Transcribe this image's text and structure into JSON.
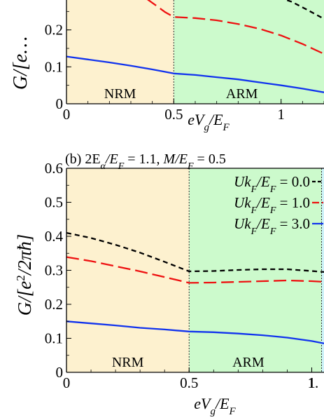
{
  "colors": {
    "nrm_region": "#fdf1cf",
    "arm_region": "#ccfacc",
    "edge_region": "#cdf2f8",
    "black_series": "#000000",
    "red_series": "#ee1111",
    "blue_series": "#1133ee"
  },
  "chart_data": [
    {
      "type": "line",
      "panel": "top",
      "title": "",
      "xlabel": "eV_g/E_F",
      "ylabel": "G/[e…",
      "xlim": [
        0,
        1.2
      ],
      "ylim": [
        0,
        0.3
      ],
      "yticks": [
        "0",
        "0.1",
        "0.2"
      ],
      "xticks": [
        "0",
        "0.5",
        "1"
      ],
      "regions": [
        {
          "label": "NRM",
          "x_from": 0,
          "x_to": 0.5
        },
        {
          "label": "ARM",
          "x_from": 0.5,
          "x_to": 1.2
        }
      ],
      "series": [
        {
          "color": "black",
          "style": "dashed",
          "x": [
            0.88,
            0.95,
            1.05,
            1.12,
            1.2
          ],
          "y": [
            0.31,
            0.296,
            0.276,
            0.255,
            0.23
          ]
        },
        {
          "color": "red",
          "style": "long-dashed",
          "x": [
            0.3,
            0.36,
            0.42,
            0.46,
            0.5,
            0.6,
            0.7,
            0.8,
            0.9,
            1.0,
            1.1,
            1.2
          ],
          "y": [
            0.31,
            0.29,
            0.265,
            0.248,
            0.235,
            0.232,
            0.226,
            0.216,
            0.203,
            0.185,
            0.162,
            0.135
          ]
        },
        {
          "color": "blue",
          "style": "solid",
          "x": [
            0,
            0.1,
            0.2,
            0.3,
            0.4,
            0.5,
            0.6,
            0.7,
            0.8,
            0.9,
            1.0,
            1.1,
            1.2
          ],
          "y": [
            0.128,
            0.12,
            0.112,
            0.103,
            0.093,
            0.082,
            0.078,
            0.072,
            0.066,
            0.058,
            0.05,
            0.041,
            0.031
          ]
        }
      ]
    },
    {
      "type": "line",
      "panel": "bottom",
      "title_parts": {
        "prefix": "(b)  2E",
        "sub1": "α",
        "mid1": "/E",
        "sub2": "F",
        "mid2": " = 1.1, ",
        "m": "M",
        "mid3": "/E",
        "sub3": "F",
        "suffix": " = 0.5"
      },
      "xlabel": "eV_g/E_F",
      "ylabel": "G/[e²/2πħ]",
      "xlim": [
        0,
        1.05
      ],
      "ylim": [
        0,
        0.6
      ],
      "yticks": [
        "0",
        "0.1",
        "0.2",
        "0.3",
        "0.4",
        "0.5",
        "0.6"
      ],
      "xticks": [
        "0",
        "0.5",
        "1",
        "1."
      ],
      "regions": [
        {
          "label": "NRM",
          "x_from": 0,
          "x_to": 0.5
        },
        {
          "label": "ARM",
          "x_from": 0.5,
          "x_to": 1.04
        }
      ],
      "legend": [
        {
          "label": "Uk_F/E_F = 0.0",
          "color": "black",
          "style": "dashed"
        },
        {
          "label": "Uk_F/E_F = 1.0",
          "color": "red",
          "style": "long-dashed"
        },
        {
          "label": "Uk_F/E_F = 3.0",
          "color": "blue",
          "style": "solid"
        }
      ],
      "legend_text": {
        "u": "Uk",
        "sub": "F",
        "slash": "/E",
        "v0": " = 0.0",
        "v1": " = 1.0",
        "v3": " = 3.0"
      },
      "series": [
        {
          "name": "Uk_F/E_F = 0.0",
          "color": "black",
          "style": "dashed",
          "x": [
            0,
            0.1,
            0.2,
            0.3,
            0.4,
            0.5,
            0.6,
            0.7,
            0.8,
            0.9,
            1.0,
            1.05
          ],
          "y": [
            0.41,
            0.395,
            0.375,
            0.352,
            0.325,
            0.297,
            0.298,
            0.301,
            0.303,
            0.303,
            0.298,
            0.295
          ]
        },
        {
          "name": "Uk_F/E_F = 1.0",
          "color": "red",
          "style": "long-dashed",
          "x": [
            0,
            0.1,
            0.2,
            0.3,
            0.4,
            0.5,
            0.6,
            0.7,
            0.8,
            0.9,
            1.0,
            1.05
          ],
          "y": [
            0.339,
            0.327,
            0.312,
            0.297,
            0.28,
            0.263,
            0.264,
            0.266,
            0.268,
            0.27,
            0.268,
            0.266
          ]
        },
        {
          "name": "Uk_F/E_F = 3.0",
          "color": "blue",
          "style": "solid",
          "x": [
            0,
            0.1,
            0.2,
            0.3,
            0.4,
            0.5,
            0.6,
            0.7,
            0.8,
            0.9,
            1.0,
            1.05
          ],
          "y": [
            0.15,
            0.144,
            0.138,
            0.131,
            0.126,
            0.12,
            0.118,
            0.114,
            0.109,
            0.102,
            0.092,
            0.085
          ]
        }
      ]
    }
  ]
}
